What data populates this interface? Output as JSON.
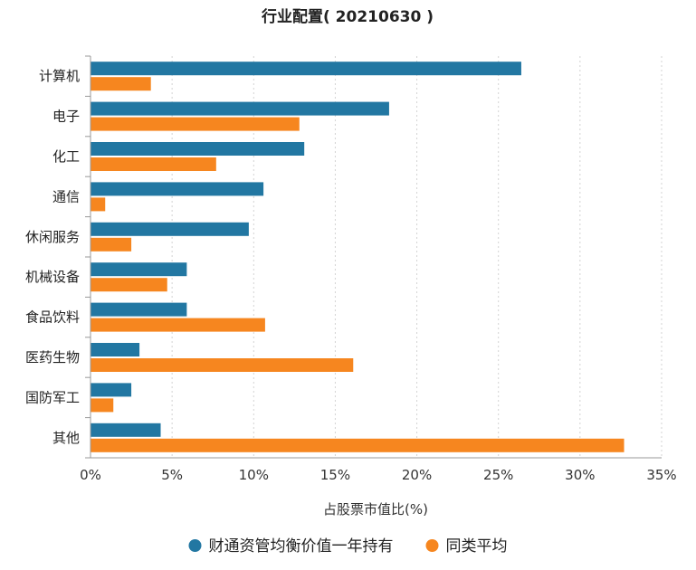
{
  "chart_data": {
    "type": "bar",
    "orientation": "horizontal",
    "title": "行业配置( 20210630 )",
    "xlabel": "占股票市值比(%)",
    "ylabel": "",
    "xlim": [
      0,
      35
    ],
    "x_ticks": [
      0,
      5,
      10,
      15,
      20,
      25,
      30,
      35
    ],
    "x_tick_labels": [
      "0%",
      "5%",
      "10%",
      "15%",
      "20%",
      "25%",
      "30%",
      "35%"
    ],
    "grid": "vertical-dashed",
    "legend_position": "bottom",
    "categories": [
      "计算机",
      "电子",
      "化工",
      "通信",
      "休闲服务",
      "机械设备",
      "食品饮料",
      "医药生物",
      "国防军工",
      "其他"
    ],
    "series": [
      {
        "name": "财通资管均衡价值一年持有",
        "color": "#2277a2",
        "values": [
          26.4,
          18.3,
          13.1,
          10.6,
          9.7,
          5.9,
          5.9,
          3.0,
          2.5,
          4.3
        ]
      },
      {
        "name": "同类平均",
        "color": "#f6861f",
        "values": [
          3.7,
          12.8,
          7.7,
          0.9,
          2.5,
          4.7,
          10.7,
          16.1,
          1.4,
          32.7
        ]
      }
    ]
  }
}
